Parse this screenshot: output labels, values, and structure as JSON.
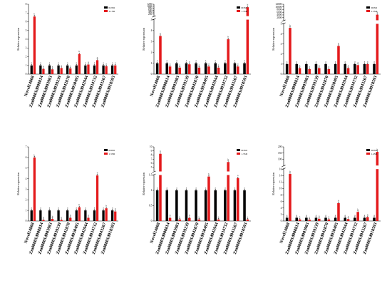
{
  "colors": {
    "control": "#000000",
    "treatment": "#e41a1c"
  },
  "chart_data": [
    {
      "type": "bar",
      "panel": 1,
      "categories": [
        "Novel14868",
        "Zm00001d008814",
        "Zm00001d003983",
        "Zm00001d039239",
        "Zm00001d042870",
        "Zm00001d050495",
        "Zm00001d042944",
        "Zm00001d034732",
        "Zm00001d043267",
        "Zm00001d018593"
      ],
      "ylabel": "Relative expression",
      "ylim": [
        0,
        8
      ],
      "yticks": [
        0,
        1,
        2,
        3,
        4,
        5,
        6,
        7,
        8
      ],
      "legend": [
        "0USD",
        "3.1SD"
      ],
      "legend_position": "top-right",
      "series": [
        {
          "name": "0USD",
          "values": [
            1,
            1,
            1,
            1,
            1,
            1,
            1,
            1,
            1,
            1
          ],
          "labels": [
            "a",
            "a",
            "a",
            "a",
            "a",
            "a",
            "a",
            "a",
            "a",
            "a"
          ]
        },
        {
          "name": "3.1SD",
          "values": [
            6.6,
            0.6,
            0.55,
            0.7,
            0.65,
            2.3,
            1.1,
            1.6,
            0.9,
            1.0
          ],
          "labels": [
            "b",
            "a",
            "a",
            "a",
            "a",
            "b",
            "a",
            "b",
            "a",
            "a"
          ]
        }
      ]
    },
    {
      "type": "bar",
      "panel": 2,
      "categories": [
        "Novel14868",
        "Zm00001d008814",
        "Zm00001d003983",
        "Zm00001d039239",
        "Zm00001d042870",
        "Zm00001d050495",
        "Zm00001d042944",
        "Zm00001d034732",
        "Zm00001d043267",
        "Zm00001d018593"
      ],
      "ylabel": "Relative expression",
      "axis_break": true,
      "yticks_lower": [
        0,
        1,
        2,
        3,
        4,
        5
      ],
      "yticks_upper": [
        200,
        400,
        600,
        800,
        1000,
        1200
      ],
      "legend": [
        "0DSD",
        "1.3SD"
      ],
      "legend_position": "top-right",
      "series": [
        {
          "name": "0DSD",
          "values": [
            1,
            1,
            1,
            1,
            1,
            1,
            1,
            1,
            1,
            1
          ],
          "labels": [
            "a",
            "a",
            "a",
            "a",
            "a",
            "a",
            "a",
            "a",
            "a",
            "a"
          ]
        },
        {
          "name": "1.3SD",
          "values": [
            3.5,
            0.7,
            0.6,
            0.9,
            0.6,
            0.7,
            0.6,
            3.2,
            0.7,
            900
          ],
          "labels": [
            "b",
            "a",
            "a",
            "a",
            "a",
            "a",
            "a",
            "b",
            "a",
            "b"
          ]
        }
      ]
    },
    {
      "type": "bar",
      "panel": 3,
      "categories": [
        "Novel14868",
        "Zm00001d008814",
        "Zm00001d003983",
        "Zm00001d039239",
        "Zm00001d042870",
        "Zm00001d050495",
        "Zm00001d042944",
        "Zm00001d034732",
        "Zm00001d043267",
        "Zm00001d018593"
      ],
      "ylabel": "Relative expression",
      "axis_break": true,
      "yticks_lower": [
        0,
        1,
        2,
        3,
        4,
        5
      ],
      "yticks_upper": [
        2000,
        4000,
        6000,
        8000,
        10000,
        12000
      ],
      "legend": [
        "0DSD",
        "1.5SD"
      ],
      "legend_position": "top-right",
      "series": [
        {
          "name": "0DSD",
          "values": [
            1,
            1,
            1,
            1,
            1,
            1,
            1,
            1,
            1,
            1
          ],
          "labels": [
            "a",
            "a",
            "a",
            "a",
            "a",
            "a",
            "a",
            "a",
            "a",
            "a"
          ]
        },
        {
          "name": "1.5SD",
          "values": [
            4.6,
            0.6,
            0.5,
            0.6,
            0.5,
            2.8,
            0.6,
            0.9,
            1.0,
            4200
          ],
          "labels": [
            "b",
            "a",
            "a",
            "a",
            "a",
            "b",
            "a",
            "a",
            "a",
            "b"
          ]
        }
      ]
    },
    {
      "type": "bar",
      "panel": 4,
      "categories": [
        "Novel14868",
        "Zm00001d008814",
        "Zm00001d003983",
        "Zm00001d039239",
        "Zm00001d042870",
        "Zm00001d050495",
        "Zm00001d042944",
        "Zm00001d034732",
        "Zm00001d043267",
        "Zm00001d018593"
      ],
      "ylabel": "Relative expression",
      "ylim": [
        0,
        7
      ],
      "yticks": [
        0,
        1,
        2,
        3,
        4,
        5,
        6,
        7
      ],
      "legend": [
        "0DSD",
        "1.3SD"
      ],
      "legend_position": "top-right",
      "series": [
        {
          "name": "0DSD",
          "values": [
            1,
            1,
            1,
            1,
            1,
            1,
            1,
            1,
            1,
            1
          ],
          "labels": [
            "a",
            "a",
            "a",
            "a",
            "a",
            "a",
            "a",
            "a",
            "a",
            "a"
          ]
        },
        {
          "name": "1.3SD",
          "values": [
            6.0,
            0.1,
            0.2,
            0.1,
            0.3,
            1.3,
            0.3,
            4.3,
            1.2,
            0.9
          ],
          "labels": [
            "b",
            "b",
            "b",
            "b",
            "b",
            "b",
            "b",
            "b",
            "b",
            "b"
          ]
        }
      ]
    },
    {
      "type": "bar",
      "panel": 5,
      "categories": [
        "Novel14868",
        "Zm00001d008814",
        "Zm00001d003983",
        "Zm00001d039239",
        "Zm00001d042870",
        "Zm00001d050495",
        "Zm00001d042944",
        "Zm00001d034732",
        "Zm00001d043267",
        "Zm00001d018593"
      ],
      "ylabel": "Relative expression",
      "axis_break": true,
      "yticks_lower": [
        0,
        0.5,
        1.0,
        1.5
      ],
      "yticks_upper": [
        5,
        6,
        7,
        8,
        9,
        10
      ],
      "legend": [
        "0DSD",
        "1.3SD"
      ],
      "legend_position": "top-right",
      "series": [
        {
          "name": "0DSD",
          "values": [
            1,
            1,
            1,
            1,
            1,
            1,
            1,
            1,
            1,
            1
          ],
          "labels": [
            "a",
            "a",
            "a",
            "a",
            "a",
            "a",
            "a",
            "a",
            "a",
            "a"
          ]
        },
        {
          "name": "1.3SD",
          "values": [
            8.3,
            0.1,
            0.05,
            0.1,
            0.05,
            1.45,
            0.05,
            6.3,
            1.4,
            0.05
          ],
          "labels": [
            "b",
            "b",
            "b",
            "b",
            "b",
            "b",
            "b",
            "b",
            "a",
            "b"
          ]
        }
      ]
    },
    {
      "type": "bar",
      "panel": 6,
      "categories": [
        "Novel14868",
        "Zm00001d008814",
        "Zm00001d003983",
        "Zm00001d039239",
        "Zm00001d042870",
        "Zm00001d050495",
        "Zm00001d042944",
        "Zm00001d034732",
        "Zm00001d043267",
        "Zm00001d018593"
      ],
      "ylabel": "Relative expression",
      "axis_break": true,
      "yticks_lower": [
        0,
        2,
        4,
        6,
        8,
        10,
        12,
        14,
        16
      ],
      "yticks_upper": [
        100,
        150,
        200
      ],
      "legend": [
        "0DSD",
        "1.4SD"
      ],
      "legend_position": "top-right",
      "series": [
        {
          "name": "0DSD",
          "values": [
            1,
            1,
            1,
            1,
            1,
            1,
            1,
            1,
            1,
            1
          ],
          "labels": [
            "a",
            "a",
            "a",
            "a",
            "a",
            "a",
            "a",
            "a",
            "a",
            "a"
          ]
        },
        {
          "name": "1.4SD",
          "values": [
            14.5,
            0.5,
            0.4,
            0.7,
            0.5,
            5.5,
            0.6,
            2.8,
            1.2,
            160
          ],
          "labels": [
            "b",
            "a",
            "a",
            "a",
            "a",
            "b",
            "a",
            "b",
            "a",
            "b"
          ]
        }
      ]
    }
  ]
}
